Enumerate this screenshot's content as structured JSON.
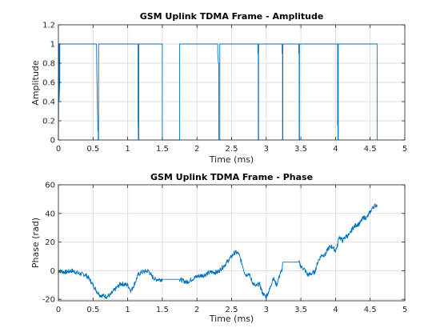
{
  "chart_data": [
    {
      "type": "line",
      "title": "GSM Uplink TDMA Frame - Amplitude",
      "xlabel": "Time (ms)",
      "ylabel": "Amplitude",
      "xlim": [
        0,
        5
      ],
      "ylim": [
        0,
        1.2
      ],
      "xticks": [
        "0",
        "0.5",
        "1",
        "1.5",
        "2",
        "2.5",
        "3",
        "3.5",
        "4",
        "4.5",
        "5"
      ],
      "yticks": [
        "0",
        "0.2",
        "0.4",
        "0.6",
        "0.8",
        "1",
        "1.2"
      ],
      "grid": true,
      "color": "#0072bd",
      "series": [
        {
          "x": [
            0,
            0.003,
            0.003,
            0.01,
            0.01,
            0.02,
            0.02,
            0.55,
            0.555,
            0.57,
            0.575,
            0.575,
            0.58,
            0.58,
            1.15,
            1.15,
            1.155,
            1.16,
            1.16,
            1.17,
            1.17,
            1.5,
            1.5,
            1.75,
            1.75,
            2.3,
            2.3,
            2.31,
            2.315,
            2.315,
            2.33,
            2.33,
            2.88,
            2.88,
            2.885,
            2.885,
            2.89,
            2.89,
            3.23,
            3.23,
            3.235,
            3.235,
            3.24,
            3.24,
            3.47,
            3.47,
            3.475,
            3.475,
            3.48,
            3.48,
            4.03,
            4.03,
            4.035,
            4.035,
            4.04,
            4.04,
            4.05,
            4.05,
            4.6,
            4.6
          ],
          "y": [
            0,
            0.3,
            1,
            1,
            0.4,
            0.6,
            1,
            1,
            0.7,
            0.1,
            0.1,
            0,
            0,
            1,
            1,
            0.2,
            0,
            0,
            1,
            1,
            1,
            1,
            0,
            0,
            1,
            1,
            0.9,
            0.8,
            0.8,
            0,
            0,
            1,
            1,
            0.9,
            0.9,
            0,
            0,
            1,
            1,
            0.9,
            0.9,
            0,
            0,
            1,
            1,
            0.9,
            0.9,
            0,
            0,
            1,
            1,
            0.15,
            0.15,
            0,
            0,
            1,
            1,
            1,
            1,
            0
          ]
        }
      ]
    },
    {
      "type": "line",
      "title": "GSM Uplink TDMA Frame - Phase",
      "xlabel": "Time (ms)",
      "ylabel": "Phase (rad)",
      "xlim": [
        0,
        5
      ],
      "ylim": [
        -21,
        60
      ],
      "xticks": [
        "0",
        "0.5",
        "1",
        "1.5",
        "2",
        "2.5",
        "3",
        "3.5",
        "4",
        "4.5",
        "5"
      ],
      "yticks": [
        "-20",
        "0",
        "20",
        "40",
        "60"
      ],
      "grid": true,
      "color": "#0072bd",
      "series": [
        {
          "x": [
            0,
            0.1,
            0.2,
            0.3,
            0.4,
            0.45,
            0.55,
            0.6,
            0.7,
            0.75,
            0.8,
            0.9,
            1.0,
            1.05,
            1.1,
            1.15,
            1.2,
            1.3,
            1.35,
            1.4,
            1.5,
            1.75,
            1.85,
            2.0,
            2.1,
            2.2,
            2.3,
            2.4,
            2.45,
            2.5,
            2.55,
            2.6,
            2.65,
            2.7,
            2.75,
            2.8,
            2.85,
            2.9,
            2.95,
            3.0,
            3.05,
            3.1,
            3.15,
            3.2,
            3.23,
            3.24,
            3.3,
            3.4,
            3.47,
            3.5,
            3.55,
            3.6,
            3.65,
            3.7,
            3.75,
            3.8,
            3.85,
            3.9,
            3.95,
            4.0,
            4.03,
            4.05,
            4.1,
            4.15,
            4.2,
            4.25,
            4.3,
            4.35,
            4.4,
            4.45,
            4.5,
            4.55,
            4.6
          ],
          "y": [
            0,
            -1,
            0,
            -2,
            -3,
            -6,
            -14,
            -17,
            -18,
            -17,
            -14,
            -9,
            -10,
            -14,
            -9,
            -3,
            -1,
            0,
            -4,
            -6,
            -6,
            -6,
            -8,
            -4,
            -3,
            -1,
            -1,
            4,
            7,
            10,
            13,
            12,
            5,
            -3,
            -2,
            -8,
            -11,
            -9,
            -16,
            -18,
            -13,
            -5,
            -10,
            -2,
            1,
            6,
            6,
            6,
            6,
            3,
            1,
            -3,
            -2,
            -1,
            7,
            11,
            11,
            16,
            17,
            14,
            18,
            24,
            21,
            24,
            25,
            30,
            32,
            33,
            37,
            37,
            41,
            45,
            46
          ]
        }
      ]
    }
  ]
}
